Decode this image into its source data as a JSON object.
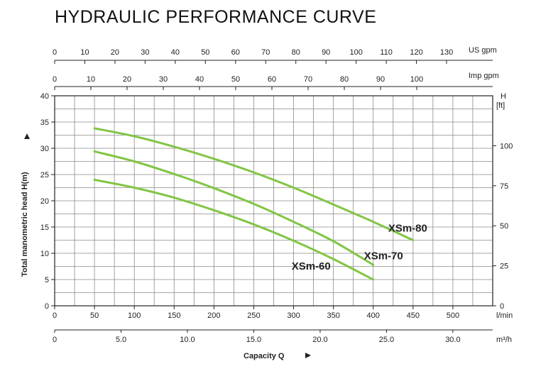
{
  "chart_data": {
    "type": "line",
    "title": "HYDRAULIC PERFORMANCE CURVE",
    "xlabel": "Capacity Q",
    "ylabel": "Total manometric head H(m)",
    "x_unit": "l/min",
    "y_unit": "",
    "xlim": [
      0,
      550
    ],
    "ylim": [
      0,
      40
    ],
    "grid": true,
    "x_ticks": [
      0,
      50,
      100,
      150,
      200,
      250,
      300,
      350,
      400,
      450,
      500
    ],
    "y_ticks": [
      0,
      5,
      10,
      15,
      20,
      25,
      30,
      35,
      40
    ],
    "secondary_axes": {
      "us_gpm": {
        "unit": "US gpm",
        "ticks": [
          "0",
          "10",
          "20",
          "30",
          "40",
          "50",
          "60",
          "70",
          "80",
          "90",
          "100",
          "110",
          "120",
          "130"
        ]
      },
      "imp_gpm": {
        "unit": "Imp gpm",
        "ticks": [
          "0",
          "10",
          "20",
          "30",
          "40",
          "50",
          "60",
          "70",
          "80",
          "90",
          "100"
        ]
      },
      "m3h": {
        "unit": "m³/h",
        "ticks": [
          "0",
          "5.0",
          "10.0",
          "15.0",
          "20.0",
          "25.0",
          "30.0"
        ]
      },
      "ft": {
        "unit_line1": "H",
        "unit_line2": "[ft]",
        "ticks": [
          "0",
          "25",
          "50",
          "75",
          "100"
        ]
      }
    },
    "series": [
      {
        "name": "XSm-80",
        "x": [
          50,
          100,
          150,
          200,
          250,
          300,
          350,
          400,
          450
        ],
        "y": [
          33.8,
          32.3,
          30.3,
          28.0,
          25.4,
          22.5,
          19.3,
          16.0,
          12.5
        ]
      },
      {
        "name": "XSm-70",
        "x": [
          50,
          100,
          150,
          200,
          250,
          300,
          350,
          400
        ],
        "y": [
          29.4,
          27.5,
          25.1,
          22.4,
          19.4,
          16.0,
          12.3,
          7.8
        ]
      },
      {
        "name": "XSm-60",
        "x": [
          50,
          100,
          150,
          200,
          250,
          300,
          350,
          400
        ],
        "y": [
          24.0,
          22.5,
          20.6,
          18.2,
          15.5,
          12.4,
          8.9,
          5.0
        ]
      }
    ]
  },
  "colors": {
    "curve": "#82c545",
    "grid": "#8a8a8a",
    "frame": "#222222"
  }
}
